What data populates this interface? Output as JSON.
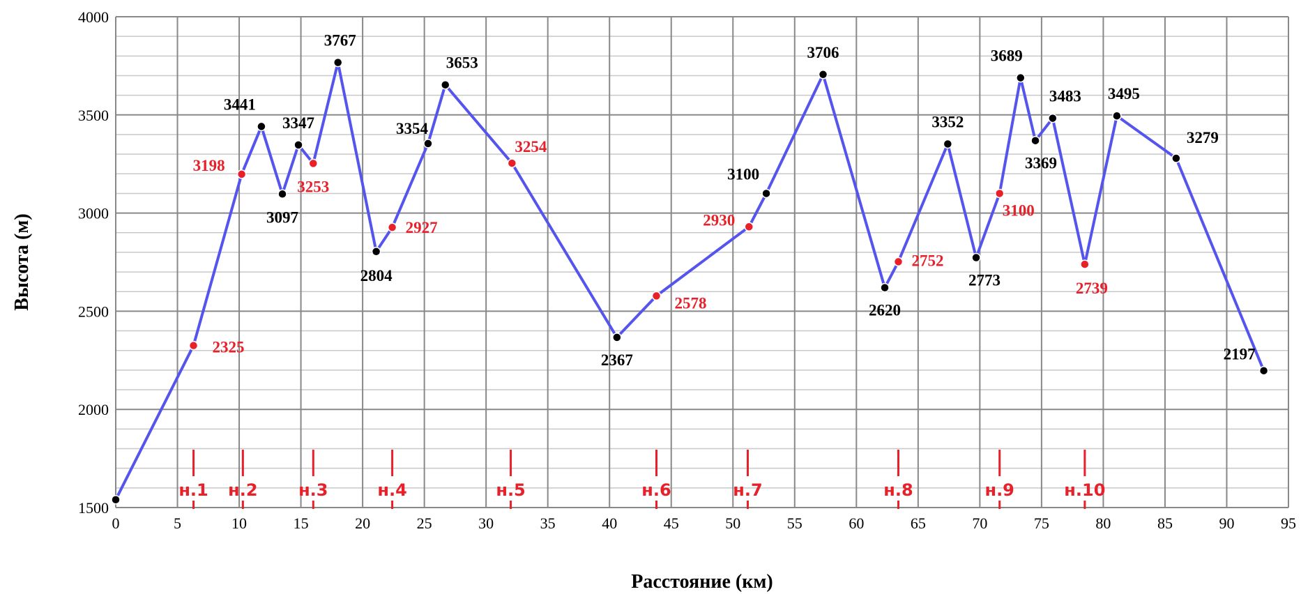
{
  "chart_data": {
    "type": "line",
    "title": "",
    "xlabel": "Расстояние (км)",
    "ylabel": "Высота (м)",
    "xlim": [
      0,
      95
    ],
    "ylim": [
      1500,
      4000
    ],
    "xticks": [
      0,
      5,
      10,
      15,
      20,
      25,
      30,
      35,
      40,
      45,
      50,
      55,
      60,
      65,
      70,
      75,
      80,
      85,
      90,
      95
    ],
    "yticks": [
      1500,
      2000,
      2500,
      3000,
      3500,
      4000
    ],
    "grid": true,
    "line_color": "#5555ee",
    "marker_colors": {
      "summit": "#000000",
      "stop": "#e8202a"
    },
    "label_colors": {
      "summit": "#000000",
      "stop": "#e8202a"
    },
    "points": [
      {
        "x": 0,
        "y": 1540,
        "kind": "summit",
        "label": ""
      },
      {
        "x": 6.3,
        "y": 2325,
        "kind": "stop",
        "label": "2325"
      },
      {
        "x": 10.2,
        "y": 3198,
        "kind": "stop",
        "label": "3198"
      },
      {
        "x": 11.8,
        "y": 3441,
        "kind": "summit",
        "label": "3441"
      },
      {
        "x": 13.5,
        "y": 3097,
        "kind": "summit",
        "label": "3097"
      },
      {
        "x": 14.8,
        "y": 3347,
        "kind": "summit",
        "label": "3347"
      },
      {
        "x": 16.0,
        "y": 3253,
        "kind": "stop",
        "label": "3253"
      },
      {
        "x": 18.0,
        "y": 3767,
        "kind": "summit",
        "label": "3767"
      },
      {
        "x": 21.1,
        "y": 2804,
        "kind": "summit",
        "label": "2804"
      },
      {
        "x": 22.4,
        "y": 2927,
        "kind": "stop",
        "label": "2927"
      },
      {
        "x": 25.3,
        "y": 3354,
        "kind": "summit",
        "label": "3354"
      },
      {
        "x": 26.7,
        "y": 3653,
        "kind": "summit",
        "label": "3653"
      },
      {
        "x": 32.1,
        "y": 3254,
        "kind": "stop",
        "label": "3254"
      },
      {
        "x": 40.6,
        "y": 2367,
        "kind": "summit",
        "label": "2367"
      },
      {
        "x": 43.8,
        "y": 2578,
        "kind": "stop",
        "label": "2578"
      },
      {
        "x": 51.3,
        "y": 2930,
        "kind": "stop",
        "label": "2930"
      },
      {
        "x": 52.7,
        "y": 3100,
        "kind": "summit",
        "label": "3100"
      },
      {
        "x": 57.3,
        "y": 3706,
        "kind": "summit",
        "label": "3706"
      },
      {
        "x": 62.3,
        "y": 2620,
        "kind": "summit",
        "label": "2620"
      },
      {
        "x": 63.4,
        "y": 2752,
        "kind": "stop",
        "label": "2752"
      },
      {
        "x": 67.4,
        "y": 3352,
        "kind": "summit",
        "label": "3352"
      },
      {
        "x": 69.7,
        "y": 2773,
        "kind": "summit",
        "label": "2773"
      },
      {
        "x": 71.6,
        "y": 3100,
        "kind": "stop",
        "label": "3100"
      },
      {
        "x": 73.3,
        "y": 3689,
        "kind": "summit",
        "label": "3689"
      },
      {
        "x": 74.5,
        "y": 3369,
        "kind": "summit",
        "label": "3369"
      },
      {
        "x": 75.9,
        "y": 3483,
        "kind": "summit",
        "label": "3483"
      },
      {
        "x": 78.5,
        "y": 2739,
        "kind": "stop",
        "label": "2739"
      },
      {
        "x": 81.1,
        "y": 3495,
        "kind": "summit",
        "label": "3495"
      },
      {
        "x": 85.9,
        "y": 3279,
        "kind": "summit",
        "label": "3279"
      },
      {
        "x": 93.0,
        "y": 2197,
        "kind": "summit",
        "label": "2197"
      }
    ],
    "stops": [
      {
        "x": 6.3,
        "label": "н.1"
      },
      {
        "x": 10.3,
        "label": "н.2"
      },
      {
        "x": 16.0,
        "label": "н.3"
      },
      {
        "x": 22.4,
        "label": "н.4"
      },
      {
        "x": 32.0,
        "label": "н.5"
      },
      {
        "x": 43.8,
        "label": "н.6"
      },
      {
        "x": 51.2,
        "label": "н.7"
      },
      {
        "x": 63.4,
        "label": "н.8"
      },
      {
        "x": 71.6,
        "label": "н.9"
      },
      {
        "x": 78.5,
        "label": "н.10"
      }
    ]
  }
}
